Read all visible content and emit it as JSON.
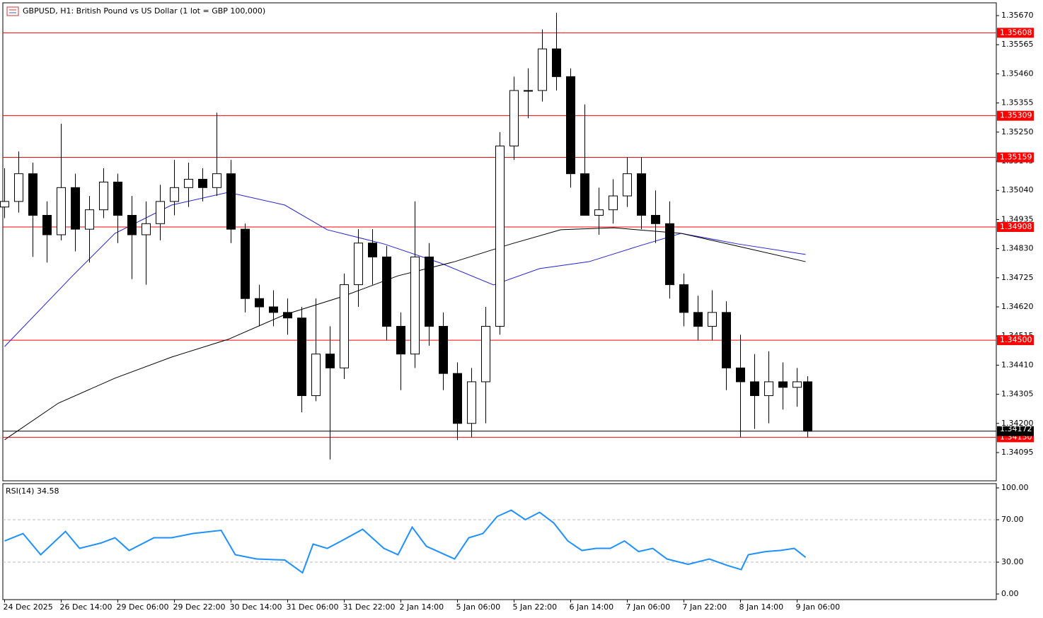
{
  "chart_data": [
    {
      "type": "candlestick",
      "title": "GBPUSD, H1:  British Pound vs US Dollar (1 lot = GBP 100,000)",
      "x": [
        0,
        4,
        8,
        12,
        16,
        20,
        24,
        28,
        32,
        36,
        40,
        44,
        48,
        52,
        56,
        60,
        64,
        68,
        72,
        76,
        80,
        84,
        88,
        92,
        96,
        100,
        104,
        108,
        112,
        116,
        120,
        124,
        128,
        132,
        136,
        140,
        144,
        148,
        152,
        156,
        160,
        164,
        168,
        172,
        176,
        180,
        184,
        188,
        192,
        196,
        200,
        204,
        208,
        212,
        216,
        220,
        224,
        227
      ],
      "ohlc": [
        [
          1.3498,
          1.3512,
          1.3494,
          1.35
        ],
        [
          1.35,
          1.3518,
          1.3496,
          1.351
        ],
        [
          1.351,
          1.3514,
          1.348,
          1.3495
        ],
        [
          1.3495,
          1.35,
          1.3478,
          1.3488
        ],
        [
          1.3488,
          1.3528,
          1.3486,
          1.3505
        ],
        [
          1.3505,
          1.351,
          1.3482,
          1.349
        ],
        [
          1.349,
          1.3502,
          1.3478,
          1.3497
        ],
        [
          1.3497,
          1.3512,
          1.3494,
          1.3507
        ],
        [
          1.3507,
          1.351,
          1.3485,
          1.3495
        ],
        [
          1.3495,
          1.3502,
          1.3472,
          1.3488
        ],
        [
          1.3488,
          1.35,
          1.347,
          1.3492
        ],
        [
          1.3492,
          1.3506,
          1.3486,
          1.35
        ],
        [
          1.35,
          1.3515,
          1.3495,
          1.3505
        ],
        [
          1.3505,
          1.3514,
          1.3498,
          1.3508
        ],
        [
          1.3508,
          1.3512,
          1.35,
          1.3505
        ],
        [
          1.3505,
          1.3532,
          1.3502,
          1.351
        ],
        [
          1.351,
          1.3515,
          1.3485,
          1.349
        ],
        [
          1.349,
          1.3492,
          1.346,
          1.3465
        ],
        [
          1.3465,
          1.347,
          1.3455,
          1.3462
        ],
        [
          1.3462,
          1.3468,
          1.3455,
          1.346
        ],
        [
          1.346,
          1.3465,
          1.3452,
          1.3458
        ],
        [
          1.3458,
          1.3462,
          1.3424,
          1.343
        ],
        [
          1.343,
          1.3465,
          1.3428,
          1.3445
        ],
        [
          1.3445,
          1.3455,
          1.3407,
          1.344
        ],
        [
          1.344,
          1.3474,
          1.3436,
          1.347
        ],
        [
          1.347,
          1.349,
          1.3462,
          1.3485
        ],
        [
          1.3485,
          1.349,
          1.347,
          1.348
        ],
        [
          1.348,
          1.3484,
          1.345,
          1.3455
        ],
        [
          1.3455,
          1.346,
          1.3432,
          1.3445
        ],
        [
          1.3445,
          1.35,
          1.344,
          1.348
        ],
        [
          1.348,
          1.3485,
          1.3448,
          1.3455
        ],
        [
          1.3455,
          1.346,
          1.3432,
          1.3438
        ],
        [
          1.3438,
          1.3442,
          1.3414,
          1.342
        ],
        [
          1.342,
          1.344,
          1.3415,
          1.3435
        ],
        [
          1.3435,
          1.3462,
          1.342,
          1.3455
        ],
        [
          1.3455,
          1.3525,
          1.3452,
          1.352
        ],
        [
          1.352,
          1.3545,
          1.3515,
          1.354
        ],
        [
          1.354,
          1.3548,
          1.353,
          1.354
        ],
        [
          1.354,
          1.3562,
          1.3536,
          1.3555
        ],
        [
          1.3555,
          1.3568,
          1.354,
          1.3545
        ],
        [
          1.3545,
          1.3548,
          1.3505,
          1.351
        ],
        [
          1.351,
          1.3535,
          1.3495,
          1.3495
        ],
        [
          1.3495,
          1.3505,
          1.3488,
          1.3497
        ],
        [
          1.3497,
          1.3508,
          1.3492,
          1.3502
        ],
        [
          1.3502,
          1.3516,
          1.3498,
          1.351
        ],
        [
          1.351,
          1.3516,
          1.349,
          1.3495
        ],
        [
          1.3495,
          1.3504,
          1.3485,
          1.3492
        ],
        [
          1.3492,
          1.35,
          1.3465,
          1.347
        ],
        [
          1.347,
          1.3474,
          1.3455,
          1.346
        ],
        [
          1.346,
          1.3466,
          1.345,
          1.3455
        ],
        [
          1.3455,
          1.3468,
          1.345,
          1.346
        ],
        [
          1.346,
          1.3464,
          1.3432,
          1.344
        ],
        [
          1.344,
          1.3452,
          1.3415,
          1.3435
        ],
        [
          1.3435,
          1.3445,
          1.3418,
          1.343
        ],
        [
          1.343,
          1.3446,
          1.342,
          1.3435
        ],
        [
          1.3435,
          1.3442,
          1.3425,
          1.3433
        ],
        [
          1.3433,
          1.344,
          1.3426,
          1.3435
        ],
        [
          1.3435,
          1.3437,
          1.3415,
          1.34172
        ]
      ],
      "series": [
        {
          "color": "#2222dd",
          "x": [
            0,
            19.2,
            31.2,
            47.2,
            63.2,
            79.2,
            91.2,
            107.2,
            123.2,
            138.2,
            151.2,
            165.2,
            179.2,
            191.2,
            207.2,
            226.4
          ],
          "values": [
            1.34477,
            1.34732,
            1.34885,
            1.34987,
            1.35033,
            1.34987,
            1.34898,
            1.34847,
            1.34778,
            1.34699,
            1.34758,
            1.34783,
            1.34839,
            1.34885,
            1.34847,
            1.34809
          ]
        },
        {
          "color": "#000000",
          "x": [
            0,
            15.2,
            31.2,
            47.2,
            63.2,
            79.2,
            95.2,
            111.2,
            127.2,
            143.2,
            157.2,
            172.2,
            191.2,
            207.2,
            226.4
          ],
          "values": [
            1.34141,
            1.34273,
            1.34363,
            1.34439,
            1.34503,
            1.34592,
            1.34656,
            1.34732,
            1.34783,
            1.34847,
            1.34898,
            1.34905,
            1.34885,
            1.34839,
            1.34783
          ]
        }
      ],
      "levels": [
        {
          "value": 1.35608,
          "label": "1.35608"
        },
        {
          "value": 1.35309,
          "label": "1.35309"
        },
        {
          "value": 1.35159,
          "label": "1.35159"
        },
        {
          "value": 1.34908,
          "label": "1.34908"
        },
        {
          "value": 1.345,
          "label": "1.34500"
        },
        {
          "value": 1.3415,
          "label": "1.34150"
        }
      ],
      "level_color": "#ff0000",
      "last_price": {
        "value": 1.34172,
        "label": "1.34172"
      },
      "xlim": [
        -0.5,
        280.3
      ],
      "ylim": [
        1.33993,
        1.35716
      ],
      "yticks": [
        {
          "value": 1.3567,
          "label": "1.35670"
        },
        {
          "value": 1.35565,
          "label": "1.35565"
        },
        {
          "value": 1.3546,
          "label": "1.35460"
        },
        {
          "value": 1.35355,
          "label": "1.35355"
        },
        {
          "value": 1.3525,
          "label": "1.35250"
        },
        {
          "value": 1.35145,
          "label": "1.35145"
        },
        {
          "value": 1.3504,
          "label": "1.35040"
        },
        {
          "value": 1.34935,
          "label": "1.34935"
        },
        {
          "value": 1.3483,
          "label": "1.34830"
        },
        {
          "value": 1.34725,
          "label": "1.34725"
        },
        {
          "value": 1.3462,
          "label": "1.34620"
        },
        {
          "value": 1.34515,
          "label": "1.34515"
        },
        {
          "value": 1.3441,
          "label": "1.34410"
        },
        {
          "value": 1.34305,
          "label": "1.34305"
        },
        {
          "value": 1.342,
          "label": "1.34200"
        },
        {
          "value": 1.34095,
          "label": "1.34095"
        }
      ]
    },
    {
      "type": "line",
      "title": "RSI(14)",
      "xlim": [
        -0.5,
        280.3
      ],
      "ylim": [
        -5.3,
        104
      ],
      "yticks": [
        {
          "value": 100,
          "label": "100.00"
        },
        {
          "value": 70,
          "label": "70.00"
        },
        {
          "value": 30,
          "label": "30.00"
        },
        {
          "value": 0,
          "label": "0.00"
        }
      ],
      "levels": [
        70,
        30
      ],
      "xticks": [
        {
          "value": 0,
          "label": "24 Dec 2025"
        },
        {
          "value": 16,
          "label": "26 Dec 14:00"
        },
        {
          "value": 32,
          "label": "29 Dec 06:00"
        },
        {
          "value": 48,
          "label": "29 Dec 22:00"
        },
        {
          "value": 64,
          "label": "30 Dec 14:00"
        },
        {
          "value": 80,
          "label": "31 Dec 06:00"
        },
        {
          "value": 96,
          "label": "31 Dec 22:00"
        },
        {
          "value": 112,
          "label": "2 Jan 14:00"
        },
        {
          "value": 128,
          "label": "5 Jan 06:00"
        },
        {
          "value": 144,
          "label": "5 Jan 22:00"
        },
        {
          "value": 160,
          "label": "6 Jan 14:00"
        },
        {
          "value": 176,
          "label": "7 Jan 06:00"
        },
        {
          "value": 192,
          "label": "7 Jan 22:00"
        },
        {
          "value": 208,
          "label": "8 Jan 14:00"
        },
        {
          "value": 224,
          "label": "9 Jan 06:00"
        }
      ],
      "series": [
        {
          "color": "#1e90ff",
          "x": [
            0,
            5.2,
            10.2,
            17.2,
            21.2,
            27.2,
            31.2,
            35.2,
            42.2,
            47.2,
            53.2,
            61.2,
            65.2,
            71.2,
            79.2,
            84.2,
            87.2,
            91.2,
            95.2,
            101.2,
            107.2,
            111.2,
            115.2,
            119.2,
            127.2,
            131.2,
            135.2,
            139.2,
            143.2,
            147.2,
            151.2,
            155.2,
            159.2,
            163.2,
            167.2,
            171.2,
            175.2,
            179.2,
            183.2,
            187.2,
            193.2,
            199.2,
            204.2,
            208.2,
            210.2,
            215.2,
            219.2,
            223.2,
            226.4
          ],
          "values": [
            50,
            57,
            37,
            59,
            43,
            48,
            53,
            41,
            53,
            53,
            57,
            60,
            37,
            33,
            32,
            20,
            47,
            43,
            50,
            61,
            43,
            37,
            63,
            45,
            33,
            53,
            57,
            73,
            79,
            70,
            77,
            67,
            50,
            41,
            43,
            43,
            50,
            40,
            43,
            33,
            28,
            33,
            27,
            23,
            37,
            40,
            41,
            43,
            34.58
          ]
        }
      ]
    }
  ]
}
